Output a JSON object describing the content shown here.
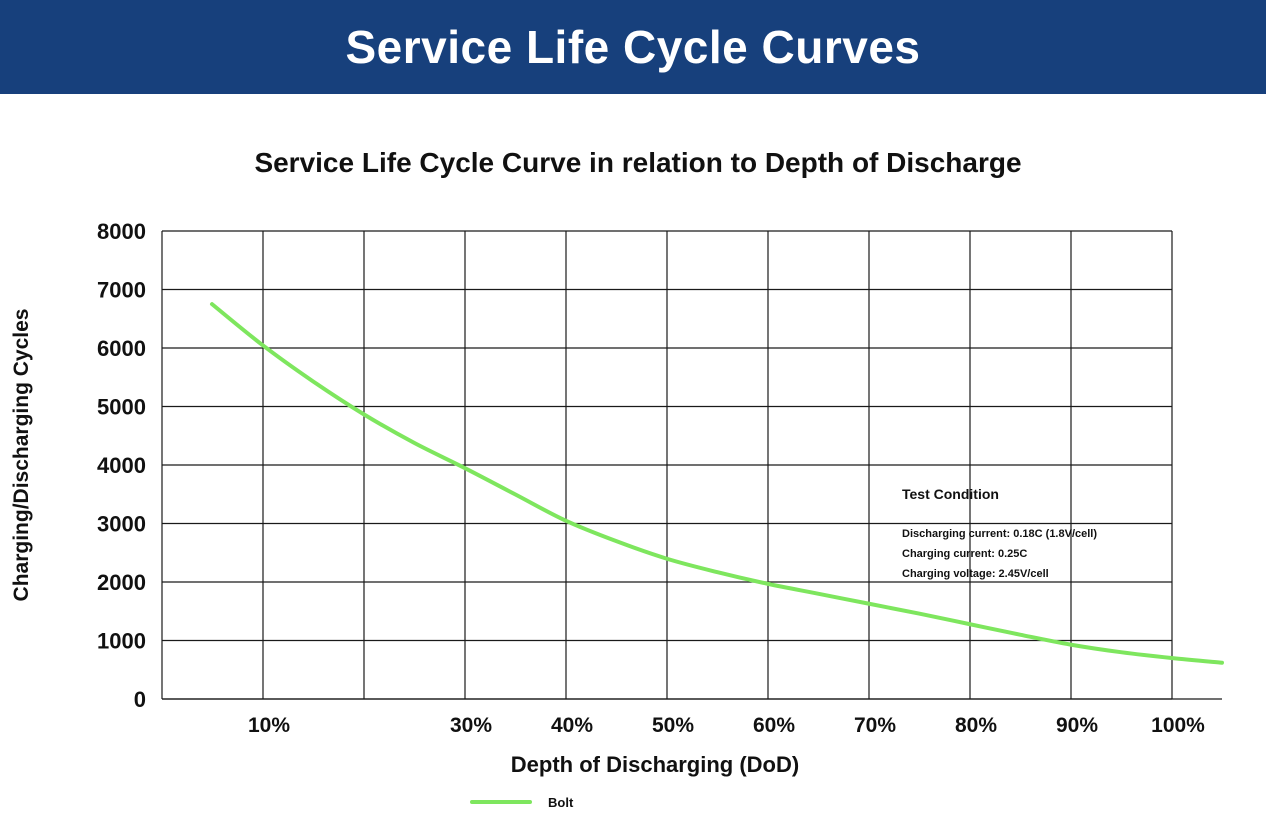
{
  "header": {
    "title": "Service Life Cycle Curves"
  },
  "colors": {
    "banner": "#17407c",
    "series": "#7ee65e",
    "grid": "#1a1a1a"
  },
  "chart_data": {
    "type": "line",
    "title": "Service Life Cycle Curve in relation to Depth of Discharge",
    "xlabel": "Depth of Discharging (DoD)",
    "ylabel": "Charging/Discharging Cycles",
    "xlim": [
      0,
      105
    ],
    "ylim": [
      0,
      8000
    ],
    "x_grid": [
      10,
      20,
      30,
      40,
      50,
      60,
      70,
      80,
      90,
      100
    ],
    "x_ticks": [
      {
        "value": 10,
        "label": "10%"
      },
      {
        "value": 30,
        "label": "30%"
      },
      {
        "value": 40,
        "label": "40%"
      },
      {
        "value": 50,
        "label": "50%"
      },
      {
        "value": 60,
        "label": "60%"
      },
      {
        "value": 70,
        "label": "70%"
      },
      {
        "value": 80,
        "label": "80%"
      },
      {
        "value": 90,
        "label": "90%"
      },
      {
        "value": 100,
        "label": "100%"
      }
    ],
    "y_ticks": [
      {
        "value": 0,
        "label": "0"
      },
      {
        "value": 1000,
        "label": "1000"
      },
      {
        "value": 2000,
        "label": "2000"
      },
      {
        "value": 3000,
        "label": "3000"
      },
      {
        "value": 4000,
        "label": "4000"
      },
      {
        "value": 5000,
        "label": "5000"
      },
      {
        "value": 6000,
        "label": "6000"
      },
      {
        "value": 7000,
        "label": "7000"
      },
      {
        "value": 8000,
        "label": "8000"
      }
    ],
    "grid": true,
    "series": [
      {
        "name": "Bolt",
        "x": [
          5,
          10,
          15,
          20,
          25,
          30,
          35,
          40,
          45,
          50,
          55,
          60,
          65,
          70,
          75,
          80,
          85,
          90,
          95,
          100,
          105
        ],
        "y": [
          6750,
          6050,
          5430,
          4870,
          4380,
          3950,
          3500,
          3050,
          2700,
          2400,
          2170,
          1970,
          1800,
          1630,
          1460,
          1280,
          1100,
          930,
          800,
          700,
          620
        ]
      }
    ],
    "legend": {
      "position": "bottom-left",
      "entries": [
        "Bolt"
      ]
    },
    "annotation": {
      "title": "Test Condition",
      "lines": [
        "Discharging current: 0.18C (1.8V/cell)",
        "Charging current: 0.25C",
        "Charging voltage: 2.45V/cell"
      ]
    }
  }
}
